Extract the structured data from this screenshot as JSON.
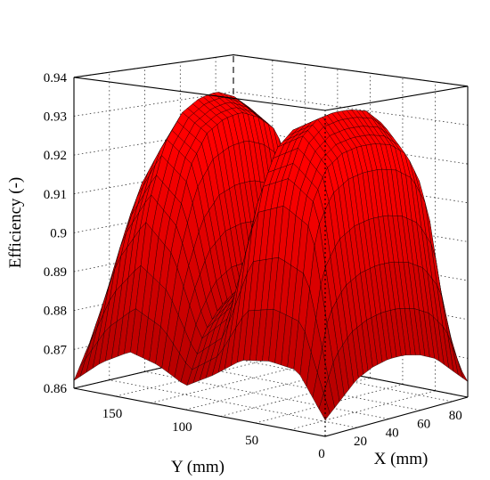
{
  "chart_data": {
    "type": "surface3d",
    "title": "",
    "xlabel": "X (mm)",
    "ylabel": "Y (mm)",
    "zlabel": "Efficiency (-)",
    "x_ticks": [
      "20",
      "40",
      "60",
      "80"
    ],
    "y_ticks": [
      "150",
      "100",
      "50",
      "0"
    ],
    "z_ticks": [
      "0.86",
      "0.87",
      "0.88",
      "0.89",
      "0.9",
      "0.91",
      "0.92",
      "0.93",
      "0.94"
    ],
    "xlim": [
      0,
      90
    ],
    "ylim": [
      0,
      180
    ],
    "zlim": [
      0.86,
      0.94
    ],
    "grid": true,
    "surface_color": "#ff0000",
    "x": [
      0,
      10,
      20,
      30,
      40,
      50,
      60,
      70,
      80,
      90
    ],
    "y": [
      0,
      20,
      40,
      60,
      80,
      100,
      120,
      140,
      160,
      180
    ],
    "z": [
      [
        0.864,
        0.868,
        0.872,
        0.874,
        0.875,
        0.875,
        0.874,
        0.872,
        0.868,
        0.864
      ],
      [
        0.875,
        0.913,
        0.922,
        0.925,
        0.926,
        0.926,
        0.925,
        0.922,
        0.913,
        0.875
      ],
      [
        0.876,
        0.918,
        0.93,
        0.934,
        0.935,
        0.935,
        0.934,
        0.93,
        0.918,
        0.876
      ],
      [
        0.875,
        0.915,
        0.926,
        0.93,
        0.931,
        0.931,
        0.93,
        0.926,
        0.915,
        0.875
      ],
      [
        0.87,
        0.885,
        0.892,
        0.896,
        0.898,
        0.898,
        0.896,
        0.892,
        0.885,
        0.87
      ],
      [
        0.866,
        0.878,
        0.884,
        0.886,
        0.886,
        0.885,
        0.884,
        0.88,
        0.876,
        0.868
      ],
      [
        0.87,
        0.9,
        0.918,
        0.926,
        0.929,
        0.93,
        0.928,
        0.924,
        0.912,
        0.88
      ],
      [
        0.872,
        0.908,
        0.924,
        0.931,
        0.934,
        0.935,
        0.933,
        0.929,
        0.918,
        0.882
      ],
      [
        0.868,
        0.896,
        0.91,
        0.916,
        0.918,
        0.918,
        0.916,
        0.912,
        0.902,
        0.874
      ],
      [
        0.862,
        0.872,
        0.88,
        0.884,
        0.886,
        0.886,
        0.884,
        0.88,
        0.872,
        0.864
      ]
    ]
  }
}
